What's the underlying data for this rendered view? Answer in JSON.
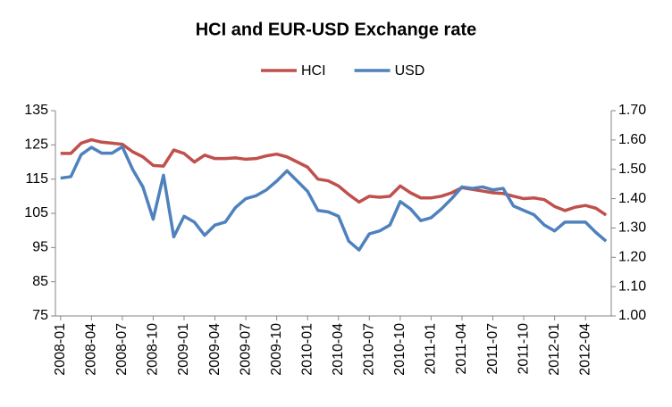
{
  "chart_data": {
    "type": "line",
    "title": "HCI and EUR-USD Exchange rate",
    "categories": [
      "2008-01",
      null,
      null,
      "2008-04",
      null,
      null,
      "2008-07",
      null,
      null,
      "2008-10",
      null,
      null,
      "2009-01",
      null,
      null,
      "2009-04",
      null,
      null,
      "2009-07",
      null,
      null,
      "2009-10",
      null,
      null,
      "2010-01",
      null,
      null,
      "2010-04",
      null,
      null,
      "2010-07",
      null,
      null,
      "2010-10",
      null,
      null,
      "2011-01",
      null,
      null,
      "2011-04",
      null,
      null,
      "2011-07",
      null,
      null,
      "2011-10",
      null,
      null,
      "2012-01",
      null,
      null,
      "2012-04",
      null,
      null
    ],
    "series": [
      {
        "name": "HCI",
        "color": "#c0504d",
        "values": [
          122.5,
          122.5,
          125.5,
          126.5,
          125.8,
          125.5,
          125.2,
          123,
          121.5,
          119,
          118.8,
          123.5,
          122.5,
          120,
          122,
          121,
          121,
          121.2,
          120.8,
          121,
          121.8,
          122.3,
          121.5,
          120,
          118.5,
          115,
          114.5,
          113,
          110.5,
          108.3,
          110,
          109.7,
          110,
          113,
          111,
          109.5,
          109.5,
          110,
          111,
          112.5,
          112,
          111.5,
          111,
          110.8,
          110,
          109.3,
          109.5,
          109,
          107,
          105.8,
          106.8,
          107.3,
          106.5,
          104.5
        ]
      },
      {
        "name": "USD",
        "color": "#4f81bd",
        "axis": "y2",
        "values": [
          1.47,
          1.475,
          1.55,
          1.575,
          1.555,
          1.555,
          1.577,
          1.5,
          1.44,
          1.33,
          1.48,
          1.27,
          1.34,
          1.32,
          1.275,
          1.31,
          1.32,
          1.37,
          1.4,
          1.41,
          1.43,
          1.46,
          1.495,
          1.46,
          1.425,
          1.36,
          1.355,
          1.34,
          1.255,
          1.225,
          1.28,
          1.29,
          1.31,
          1.39,
          1.365,
          1.325,
          1.335,
          1.365,
          1.4,
          1.44,
          1.435,
          1.44,
          1.43,
          1.435,
          1.375,
          1.36,
          1.345,
          1.31,
          1.29,
          1.32,
          1.32,
          1.32,
          1.285,
          1.255
        ]
      }
    ],
    "ylim": [
      75,
      135
    ],
    "yticks": [
      75,
      85,
      95,
      105,
      115,
      125,
      135
    ],
    "y2lim": [
      1.0,
      1.7
    ],
    "y2ticks": [
      {
        "value": 1.0,
        "label": "1.00"
      },
      {
        "value": 1.1,
        "label": "1.10"
      },
      {
        "value": 1.2,
        "label": "1.20"
      },
      {
        "value": 1.3,
        "label": "1.30"
      },
      {
        "value": 1.4,
        "label": "1.40"
      },
      {
        "value": 1.5,
        "label": "1.50"
      },
      {
        "value": 1.6,
        "label": "1.60"
      },
      {
        "value": 1.7,
        "label": "1.70"
      }
    ],
    "legend": "top",
    "grid": false
  }
}
